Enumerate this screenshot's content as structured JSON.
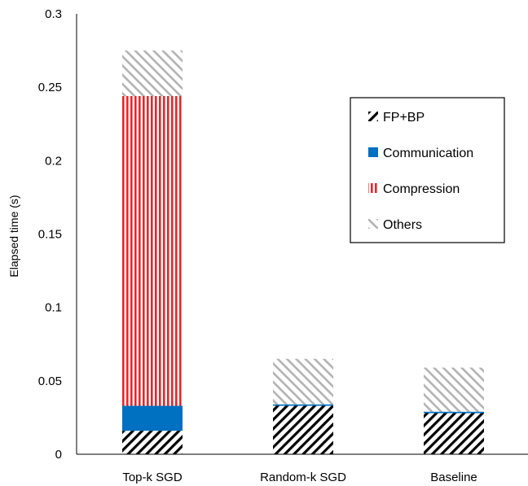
{
  "chart_data": {
    "type": "bar",
    "stacked": true,
    "categories": [
      "Top-k SGD",
      "Random-k SGD",
      "Baseline"
    ],
    "series": [
      {
        "name": "FP+BP",
        "values": [
          0.016,
          0.033,
          0.028
        ],
        "color": "#000000",
        "pattern": "diagonal-hatch"
      },
      {
        "name": "Communication",
        "values": [
          0.017,
          0.001,
          0.001
        ],
        "color": "#0070C0",
        "pattern": "solid"
      },
      {
        "name": "Compression",
        "values": [
          0.211,
          0.0,
          0.0
        ],
        "color": "#E8262A",
        "pattern": "vertical-lines"
      },
      {
        "name": "Others",
        "values": [
          0.031,
          0.031,
          0.03
        ],
        "color": "#A6A6A6",
        "pattern": "diagonal-hatch-light"
      }
    ],
    "title": "",
    "xlabel": "",
    "ylabel": "Elapsed time (s)",
    "ylim": [
      0,
      0.3
    ],
    "yticks": [
      "0",
      "0.05",
      "0.1",
      "0.15",
      "0.2",
      "0.25",
      "0.3"
    ],
    "grid": false,
    "legend": "top-right"
  }
}
